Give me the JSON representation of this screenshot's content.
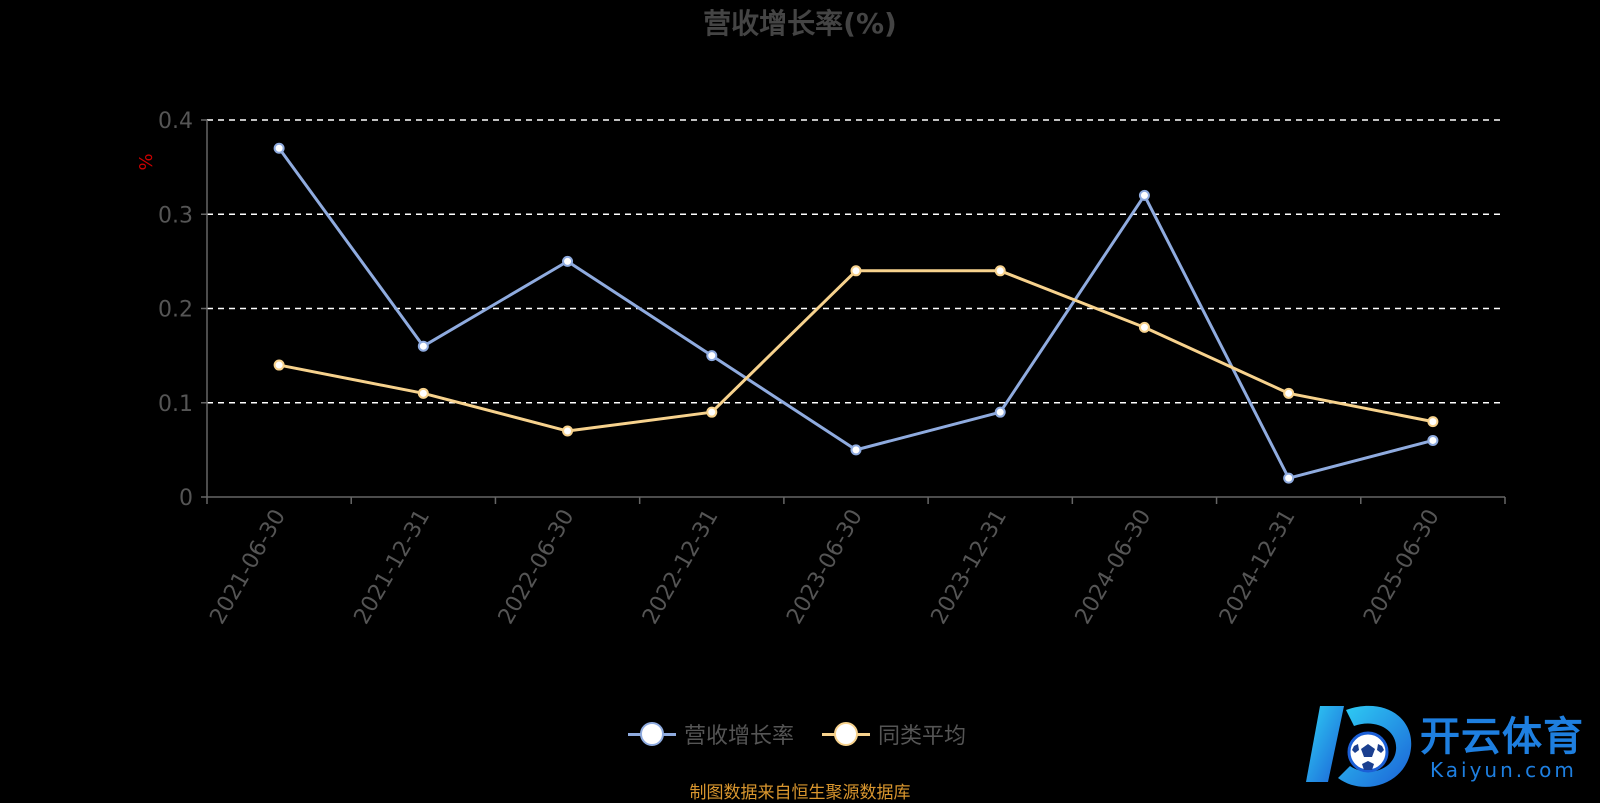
{
  "source_note": "制图数据来自恒生聚源数据库",
  "brand": {
    "name_cn": "开云体育",
    "name_en": "Kaiyun.com",
    "logo": "k-soccer-ball-logo"
  },
  "colors": {
    "background": "#000000",
    "series_1": "#8fabdf",
    "series_2": "#f7d28d",
    "grid": "#ffffff",
    "axis": "#666666",
    "ylabel": "#cc0000",
    "source_note": "#d9962e"
  },
  "chart_data": {
    "type": "line",
    "title": "营收增长率(%)",
    "ylabel": "%",
    "xlabel": "",
    "ylim": [
      0,
      0.4
    ],
    "yticks": [
      0,
      0.1,
      0.2,
      0.3,
      0.4
    ],
    "ytick_labels": [
      "0",
      "0.1",
      "0.2",
      "0.3",
      "0.4"
    ],
    "grid": true,
    "legend_position": "bottom-center",
    "categories": [
      "2021-06-30",
      "2021-12-31",
      "2022-06-30",
      "2022-12-31",
      "2023-06-30",
      "2023-12-31",
      "2024-06-30",
      "2024-12-31",
      "2025-06-30"
    ],
    "series": [
      {
        "name": "营收增长率",
        "color": "#8fabdf",
        "values": [
          0.37,
          0.16,
          0.25,
          0.15,
          0.05,
          0.09,
          0.32,
          0.02,
          0.06
        ]
      },
      {
        "name": "同类平均",
        "color": "#f7d28d",
        "values": [
          0.14,
          0.11,
          0.07,
          0.09,
          0.24,
          0.24,
          0.18,
          0.11,
          0.08
        ]
      }
    ]
  }
}
